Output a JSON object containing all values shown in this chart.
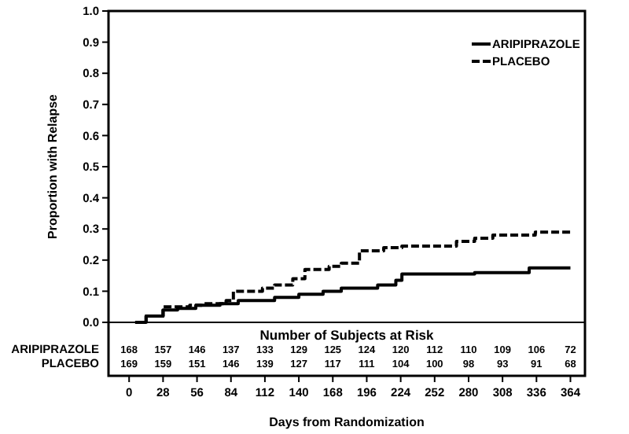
{
  "chart_data": {
    "type": "step",
    "xlabel": "Days from Randomization",
    "ylabel": "Proportion with Relapse",
    "xlim": [
      -17,
      376
    ],
    "xticks": [
      0,
      28,
      56,
      84,
      112,
      140,
      168,
      196,
      224,
      252,
      280,
      308,
      336,
      364
    ],
    "ylim": [
      0,
      1
    ],
    "yticks": [
      {
        "value": 0,
        "label": "0.0"
      },
      0.1,
      0.2,
      0.3,
      0.4,
      0.5,
      0.6,
      0.7,
      0.8,
      0.9,
      {
        "value": 1,
        "label": "1.0"
      }
    ],
    "legend": "top right",
    "grid": false,
    "series": [
      {
        "name": "ARIPIPRAZOLE",
        "color": "#000000",
        "line_style": "solid",
        "x": [
          5,
          14,
          28,
          40,
          55,
          75,
          90,
          120,
          140,
          160,
          175,
          205,
          220,
          225,
          285,
          330,
          364
        ],
        "values": [
          0,
          0.02,
          0.04,
          0.045,
          0.055,
          0.06,
          0.07,
          0.08,
          0.09,
          0.1,
          0.11,
          0.12,
          0.135,
          0.155,
          0.16,
          0.175,
          0.175
        ]
      },
      {
        "name": "PLACEBO",
        "color": "#000000",
        "line_style": "dashed",
        "x": [
          5,
          14,
          28,
          50,
          60,
          80,
          86,
          110,
          120,
          135,
          145,
          165,
          175,
          190,
          210,
          225,
          270,
          285,
          300,
          335,
          364
        ],
        "values": [
          0,
          0.02,
          0.05,
          0.055,
          0.06,
          0.07,
          0.1,
          0.11,
          0.12,
          0.14,
          0.17,
          0.18,
          0.19,
          0.23,
          0.24,
          0.245,
          0.26,
          0.27,
          0.28,
          0.29,
          0.29
        ]
      }
    ],
    "annotations": [
      "Number of Subjects at Risk",
      "ARIPIPRAZOLE 168 157 146 137 133 129 125 124 120 112 110 109 106 72",
      "PLACEBO 169 159 151 146 139 127 117 111 104 100 98 93 91 68"
    ]
  }
}
